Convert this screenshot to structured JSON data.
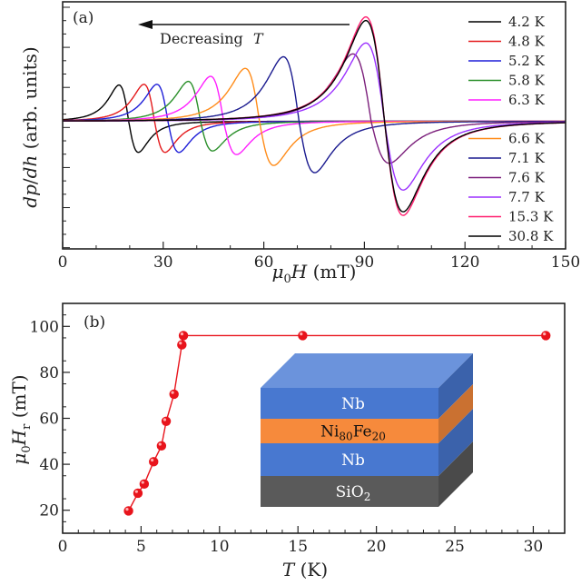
{
  "chart_data": [
    {
      "panel": "(a)",
      "type": "line",
      "title": "",
      "xlabel": "μ0H (mT)",
      "ylabel": "dp/dh  (arb. units)",
      "xlim": [
        0,
        150
      ],
      "ylim": [
        -1.55,
        1.45
      ],
      "xticks": [
        0,
        30,
        60,
        90,
        120,
        150
      ],
      "x_minor_step": 10,
      "grid": false,
      "legend_placement": "right",
      "annotation": {
        "text": "Decreasing",
        "var": "T",
        "arrow": "left"
      },
      "series": [
        {
          "name": "4.2 K",
          "label_num": "4.2",
          "color": "#000000",
          "resonance_field": 19.7,
          "pos_amp": 0.5,
          "neg_amp": 0.43
        },
        {
          "name": "4.8 K",
          "label_num": "4.8",
          "color": "#e41a1c",
          "resonance_field": 27.4,
          "pos_amp": 0.51,
          "neg_amp": 0.43
        },
        {
          "name": "5.2 K",
          "label_num": "5.2",
          "color": "#1f1fd8",
          "resonance_field": 31.4,
          "pos_amp": 0.51,
          "neg_amp": 0.43
        },
        {
          "name": "5.8 K",
          "label_num": "5.8",
          "color": "#2a8f2a",
          "resonance_field": 41.1,
          "pos_amp": 0.55,
          "neg_amp": 0.41
        },
        {
          "name": "6.3 K",
          "label_num": "6.3",
          "color": "#ff1fff",
          "resonance_field": 48.0,
          "pos_amp": 0.62,
          "neg_amp": 0.46
        },
        {
          "name": "6.6 K",
          "label_num": "6.6",
          "color": "#ff8c1a",
          "resonance_field": 58.7,
          "pos_amp": 0.73,
          "neg_amp": 0.61
        },
        {
          "name": "7.1 K",
          "label_num": "7.1",
          "color": "#1a1a8f",
          "resonance_field": 70.5,
          "pos_amp": 0.89,
          "neg_amp": 0.71
        },
        {
          "name": "7.6 K",
          "label_num": "7.6",
          "color": "#7b1f7b",
          "resonance_field": 92.0,
          "pos_amp": 0.93,
          "neg_amp": 0.58
        },
        {
          "name": "7.7 K",
          "label_num": "7.7",
          "color": "#9b30ff",
          "resonance_field": 96.0,
          "pos_amp": 1.08,
          "neg_amp": 0.95
        },
        {
          "name": "15.3 K",
          "label_num": "15.3",
          "color": "#ff1f6f",
          "resonance_field": 96.0,
          "pos_amp": 1.44,
          "neg_amp": 1.3
        },
        {
          "name": "30.8 K",
          "label_num": "30.8",
          "color": "#000000",
          "resonance_field": 96.0,
          "pos_amp": 1.39,
          "neg_amp": 1.25
        }
      ]
    },
    {
      "panel": "(b)",
      "type": "line",
      "title": "",
      "xlabel": "T (K)",
      "ylabel": "μ0Hr (mT)",
      "xlim": [
        0,
        32
      ],
      "ylim": [
        10,
        110
      ],
      "xticks": [
        0,
        5,
        10,
        15,
        20,
        25,
        30
      ],
      "yticks": [
        20,
        40,
        60,
        80,
        100
      ],
      "x_minor_step": 1,
      "y_minor_step": 5,
      "grid": false,
      "color": "#e8141c",
      "x": [
        4.2,
        4.8,
        5.2,
        5.8,
        6.3,
        6.6,
        7.1,
        7.6,
        7.7,
        15.3,
        30.8
      ],
      "y": [
        19.7,
        27.4,
        31.4,
        41.1,
        48.0,
        58.7,
        70.5,
        92.0,
        96.0,
        96.0,
        96.0
      ],
      "inset": {
        "description": "layer stack schematic",
        "layers": [
          {
            "label": "Nb",
            "color": "#4878d0",
            "text_color": "#ffffff"
          },
          {
            "label": "Ni",
            "sub1": "80",
            "label2": "Fe",
            "sub2": "20",
            "color": "#f68a3c",
            "text_color": "#111111"
          },
          {
            "label": "Nb",
            "color": "#4878d0",
            "text_color": "#ffffff"
          },
          {
            "label": "SiO",
            "sub1": "2",
            "color": "#5a5a5a",
            "text_color": "#ffffff"
          }
        ]
      }
    }
  ]
}
